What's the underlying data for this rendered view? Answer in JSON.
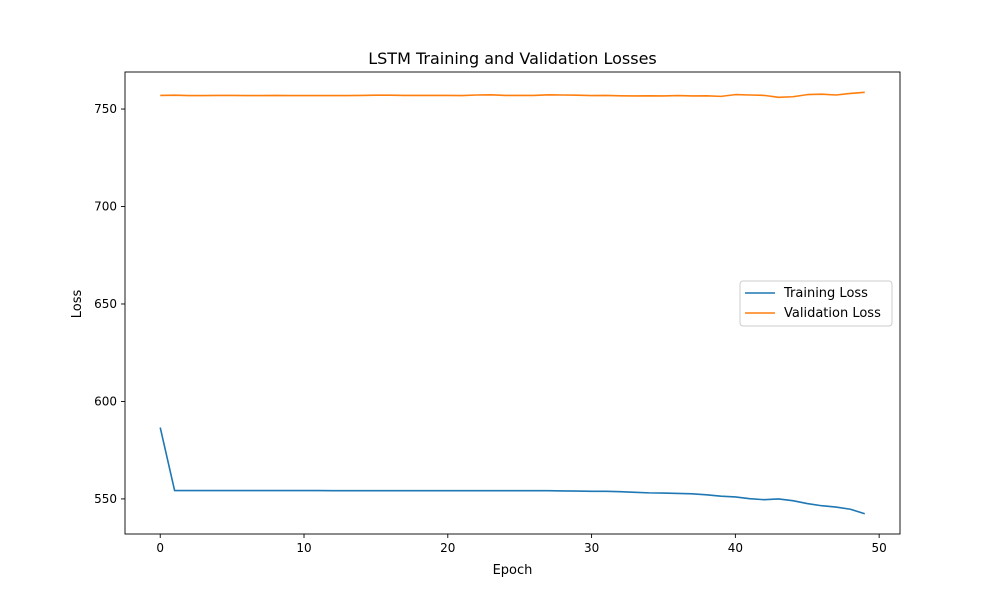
{
  "chart_data": {
    "type": "line",
    "title": "LSTM Training and Validation Losses",
    "xlabel": "Epoch",
    "ylabel": "Loss",
    "xlim": [
      -2.45,
      51.45
    ],
    "ylim": [
      532,
      769
    ],
    "xticks": [
      0,
      10,
      20,
      30,
      40,
      50
    ],
    "yticks": [
      550,
      600,
      650,
      700,
      750
    ],
    "grid": false,
    "legend_position": "center-right",
    "x": [
      0,
      1,
      2,
      3,
      4,
      5,
      6,
      7,
      8,
      9,
      10,
      11,
      12,
      13,
      14,
      15,
      16,
      17,
      18,
      19,
      20,
      21,
      22,
      23,
      24,
      25,
      26,
      27,
      28,
      29,
      30,
      31,
      32,
      33,
      34,
      35,
      36,
      37,
      38,
      39,
      40,
      41,
      42,
      43,
      44,
      45,
      46,
      47,
      48,
      49
    ],
    "series": [
      {
        "name": "Training Loss",
        "color": "#1f77b4",
        "values": [
          586.6,
          554.3,
          554.3,
          554.3,
          554.3,
          554.3,
          554.3,
          554.3,
          554.3,
          554.3,
          554.3,
          554.3,
          554.2,
          554.2,
          554.2,
          554.2,
          554.2,
          554.2,
          554.2,
          554.2,
          554.2,
          554.2,
          554.2,
          554.2,
          554.2,
          554.2,
          554.2,
          554.2,
          554.1,
          554.0,
          553.9,
          553.9,
          553.7,
          553.4,
          553.1,
          553.0,
          552.8,
          552.6,
          552.1,
          551.4,
          551.0,
          550.1,
          549.6,
          550.0,
          549.1,
          547.6,
          546.5,
          545.8,
          544.7,
          542.4
        ]
      },
      {
        "name": "Validation Loss",
        "color": "#ff7f0e",
        "values": [
          757.0,
          757.1,
          756.9,
          756.9,
          757.0,
          757.0,
          756.9,
          756.9,
          757.0,
          756.9,
          756.9,
          756.9,
          756.9,
          756.9,
          757.0,
          757.1,
          757.1,
          757.0,
          757.0,
          757.0,
          757.0,
          756.9,
          757.2,
          757.3,
          757.0,
          757.0,
          757.0,
          757.3,
          757.2,
          757.1,
          756.9,
          757.0,
          756.8,
          756.7,
          756.8,
          756.7,
          756.9,
          756.7,
          756.8,
          756.5,
          757.4,
          757.2,
          757.0,
          756.0,
          756.3,
          757.4,
          757.6,
          757.2,
          758.0,
          758.6
        ]
      }
    ]
  }
}
